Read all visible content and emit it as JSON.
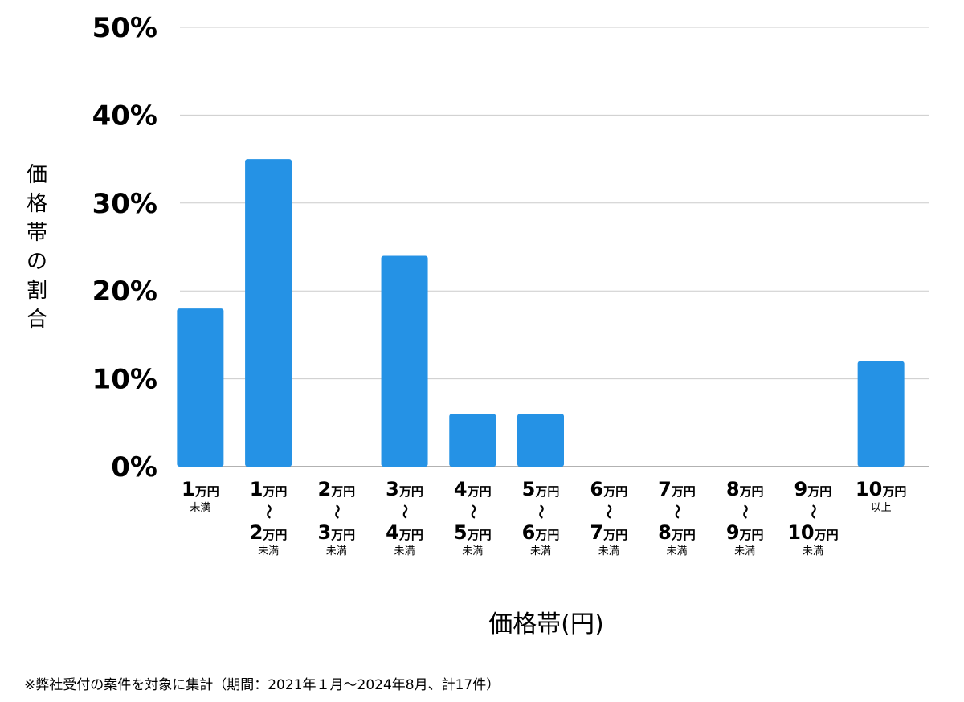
{
  "chart_data": {
    "type": "bar",
    "ylabel": "価格帯の割合",
    "xlabel": "価格帯(円)",
    "ylim": [
      0,
      50
    ],
    "yticks": [
      "0%",
      "10%",
      "20%",
      "30%",
      "40%",
      "50%"
    ],
    "ytick_values": [
      0,
      10,
      20,
      30,
      40,
      50
    ],
    "grid": true,
    "bar_color": "#2592e5",
    "categories": [
      {
        "lines": [
          {
            "num": "1",
            "unit": "万円"
          }
        ],
        "suffix": "未満"
      },
      {
        "lines": [
          {
            "num": "1",
            "unit": "万円"
          },
          {
            "num": "2",
            "unit": "万円"
          }
        ],
        "tilde": "〜",
        "suffix": "未満"
      },
      {
        "lines": [
          {
            "num": "2",
            "unit": "万円"
          },
          {
            "num": "3",
            "unit": "万円"
          }
        ],
        "tilde": "〜",
        "suffix": "未満"
      },
      {
        "lines": [
          {
            "num": "3",
            "unit": "万円"
          },
          {
            "num": "4",
            "unit": "万円"
          }
        ],
        "tilde": "〜",
        "suffix": "未満"
      },
      {
        "lines": [
          {
            "num": "4",
            "unit": "万円"
          },
          {
            "num": "5",
            "unit": "万円"
          }
        ],
        "tilde": "〜",
        "suffix": "未満"
      },
      {
        "lines": [
          {
            "num": "5",
            "unit": "万円"
          },
          {
            "num": "6",
            "unit": "万円"
          }
        ],
        "tilde": "〜",
        "suffix": "未満"
      },
      {
        "lines": [
          {
            "num": "6",
            "unit": "万円"
          },
          {
            "num": "7",
            "unit": "万円"
          }
        ],
        "tilde": "〜",
        "suffix": "未満"
      },
      {
        "lines": [
          {
            "num": "7",
            "unit": "万円"
          },
          {
            "num": "8",
            "unit": "万円"
          }
        ],
        "tilde": "〜",
        "suffix": "未満"
      },
      {
        "lines": [
          {
            "num": "8",
            "unit": "万円"
          },
          {
            "num": "9",
            "unit": "万円"
          }
        ],
        "tilde": "〜",
        "suffix": "未満"
      },
      {
        "lines": [
          {
            "num": "9",
            "unit": "万円"
          },
          {
            "num": "10",
            "unit": "万円"
          }
        ],
        "tilde": "〜",
        "suffix": "未満"
      },
      {
        "lines": [
          {
            "num": "10",
            "unit": "万円"
          }
        ],
        "suffix": "以上"
      }
    ],
    "values": [
      18,
      35,
      0,
      24,
      6,
      6,
      0,
      0,
      0,
      0,
      12
    ]
  },
  "footnote": "※弊社受付の案件を対象に集計（期間：2021年１月〜2024年8月、計17件）"
}
